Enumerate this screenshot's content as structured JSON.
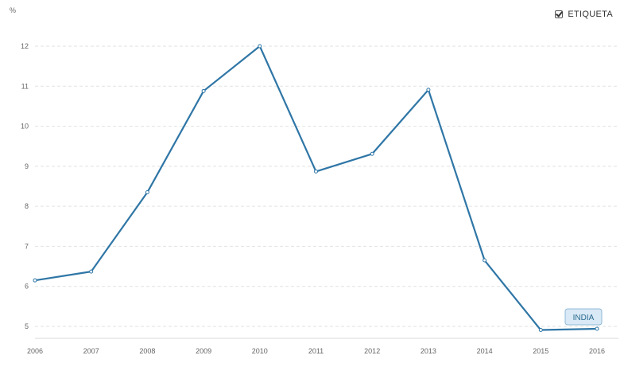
{
  "legend": {
    "label": "ETIQUETA",
    "checked": true
  },
  "chart_data": {
    "type": "line",
    "ylabel": "%",
    "x": [
      "2006",
      "2007",
      "2008",
      "2009",
      "2010",
      "2011",
      "2012",
      "2013",
      "2014",
      "2015",
      "2016"
    ],
    "series": [
      {
        "name": "INDIA",
        "values": [
          6.15,
          6.37,
          8.35,
          10.88,
          12.0,
          8.87,
          9.31,
          10.91,
          6.65,
          4.91,
          4.94
        ]
      }
    ],
    "yticks": [
      5,
      6,
      7,
      8,
      9,
      10,
      11,
      12
    ],
    "ylim": [
      4.75,
      12.25
    ],
    "grid": true,
    "legend_position": "top-right",
    "colors": {
      "line": "#2f76a6",
      "label_bg": "#d9e9f5",
      "label_border": "#8fb9d8",
      "grid": "#e2e2e2"
    }
  }
}
